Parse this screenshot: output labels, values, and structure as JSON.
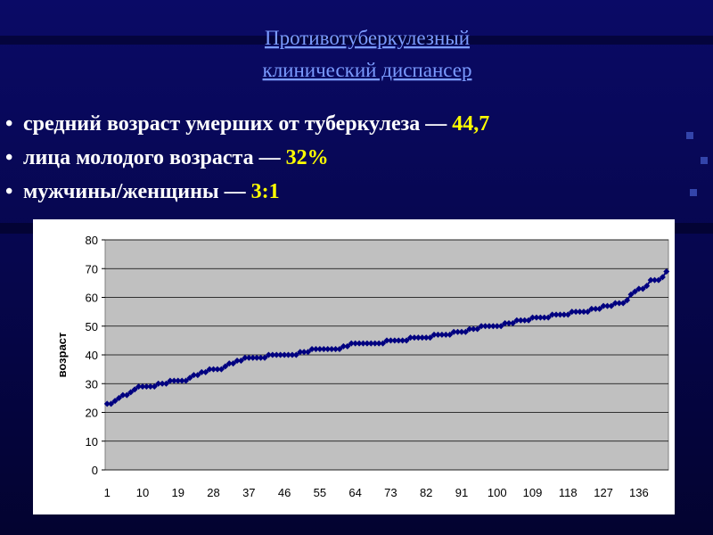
{
  "header": {
    "title_lines": [
      "Противотуберкулезный",
      "клинический диспансер"
    ]
  },
  "bullets": [
    {
      "text": "средний возраст умерших от туберкулеза — ",
      "value": "44,7"
    },
    {
      "text": "лица молодого возраста — ",
      "value": "32%"
    },
    {
      "text": "мужчины/женщины — ",
      "value": "3:1"
    }
  ],
  "chart_data": {
    "type": "line",
    "y_label": "возраст",
    "color": "#000080",
    "grid": true,
    "ylim": [
      0,
      80
    ],
    "yticks": [
      0,
      10,
      20,
      30,
      40,
      50,
      60,
      70,
      80
    ],
    "categories": [
      1,
      null,
      null,
      null,
      null,
      null,
      null,
      null,
      null,
      10,
      null,
      null,
      null,
      null,
      null,
      null,
      null,
      null,
      19,
      null,
      null,
      null,
      null,
      null,
      null,
      null,
      null,
      28,
      null,
      null,
      null,
      null,
      null,
      null,
      null,
      null,
      37,
      null,
      null,
      null,
      null,
      null,
      null,
      null,
      null,
      46,
      null,
      null,
      null,
      null,
      null,
      null,
      null,
      null,
      55,
      null,
      null,
      null,
      null,
      null,
      null,
      null,
      null,
      64,
      null,
      null,
      null,
      null,
      null,
      null,
      null,
      null,
      73,
      null,
      null,
      null,
      null,
      null,
      null,
      null,
      null,
      82,
      null,
      null,
      null,
      null,
      null,
      null,
      null,
      null,
      91,
      null,
      null,
      null,
      null,
      null,
      null,
      null,
      null,
      100,
      null,
      null,
      null,
      null,
      null,
      null,
      null,
      null,
      109,
      null,
      null,
      null,
      null,
      null,
      null,
      null,
      null,
      118,
      null,
      null,
      null,
      null,
      null,
      null,
      null,
      null,
      127,
      null,
      null,
      null,
      null,
      null,
      null,
      null,
      null,
      136,
      null,
      null,
      null,
      null,
      null,
      null,
      null
    ],
    "values": [
      23,
      23,
      24,
      25,
      26,
      26,
      27,
      28,
      29,
      29,
      29,
      29,
      29,
      30,
      30,
      30,
      31,
      31,
      31,
      31,
      31,
      32,
      33,
      33,
      34,
      34,
      35,
      35,
      35,
      35,
      36,
      37,
      37,
      38,
      38,
      39,
      39,
      39,
      39,
      39,
      39,
      40,
      40,
      40,
      40,
      40,
      40,
      40,
      40,
      41,
      41,
      41,
      42,
      42,
      42,
      42,
      42,
      42,
      42,
      42,
      43,
      43,
      44,
      44,
      44,
      44,
      44,
      44,
      44,
      44,
      44,
      45,
      45,
      45,
      45,
      45,
      45,
      46,
      46,
      46,
      46,
      46,
      46,
      47,
      47,
      47,
      47,
      47,
      48,
      48,
      48,
      48,
      49,
      49,
      49,
      50,
      50,
      50,
      50,
      50,
      50,
      51,
      51,
      51,
      52,
      52,
      52,
      52,
      53,
      53,
      53,
      53,
      53,
      54,
      54,
      54,
      54,
      54,
      55,
      55,
      55,
      55,
      55,
      56,
      56,
      56,
      57,
      57,
      57,
      58,
      58,
      58,
      59,
      61,
      62,
      63,
      63,
      64,
      66,
      66,
      66,
      67,
      69
    ]
  }
}
